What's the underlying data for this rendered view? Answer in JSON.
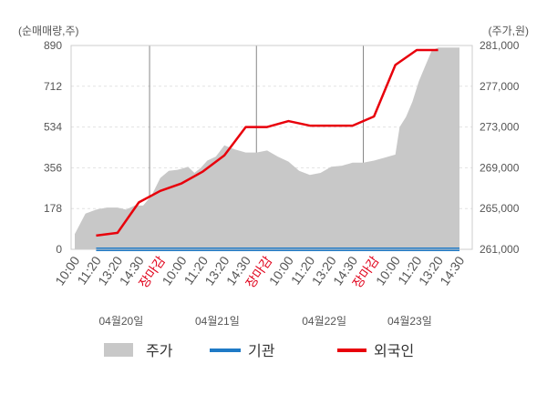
{
  "chart_data": {
    "type": "area",
    "title": "",
    "left_axis": {
      "unit": "(순매매량,주)",
      "ticks": [
        "890",
        "712",
        "534",
        "356",
        "178",
        "0"
      ],
      "tick_values": [
        890,
        712,
        534,
        356,
        178,
        0
      ],
      "range": [
        0,
        890
      ]
    },
    "right_axis": {
      "unit": "(주가,원)",
      "ticks": [
        "281,000",
        "277,000",
        "273,000",
        "269,000",
        "265,000",
        "261,000"
      ],
      "tick_values": [
        281000,
        277000,
        273000,
        269000,
        265000,
        261000
      ],
      "range": [
        261000,
        281000
      ]
    },
    "x_tick_labels": [
      "10:00",
      "11:20",
      "13:20",
      "14:30",
      "장마감",
      "10:00",
      "11:20",
      "13:20",
      "14:30",
      "장마감",
      "10:00",
      "11:20",
      "13:20",
      "14:30",
      "장마감",
      "10:00",
      "11:20",
      "13:20",
      "14:30"
    ],
    "close_label": "장마감",
    "dates": [
      "04월20일",
      "04월21일",
      "04월22일",
      "04월23일"
    ],
    "legend": [
      "주가",
      "기관",
      "외국인"
    ],
    "series": [
      {
        "name": "주가",
        "axis": "right",
        "color": "#c8c8c8",
        "x": [
          0,
          0.5,
          1,
          1.5,
          2,
          2.4,
          2.8,
          3.2,
          3.6,
          4,
          4.4,
          4.8,
          5,
          5.3,
          5.6,
          5.9,
          6.2,
          6.6,
          7,
          7.5,
          8,
          8.5,
          9,
          9.5,
          10,
          10.5,
          11,
          11.5,
          12,
          12.5,
          13,
          13.5,
          14,
          14.5,
          15,
          15.2,
          15.5,
          15.8,
          16.1,
          16.4,
          16.7,
          17,
          17.5,
          18
        ],
        "values": [
          262500,
          264500,
          264900,
          265100,
          265100,
          264900,
          265300,
          265300,
          266300,
          268000,
          268700,
          268800,
          268900,
          269100,
          268500,
          269000,
          269700,
          270100,
          271200,
          270800,
          270500,
          270500,
          270700,
          270100,
          269600,
          268700,
          268300,
          268500,
          269100,
          269200,
          269500,
          269500,
          269700,
          270000,
          270300,
          273000,
          274000,
          275500,
          277500,
          279000,
          280500,
          280800,
          280800,
          280800
        ]
      },
      {
        "name": "기관",
        "axis": "left",
        "color": "#1f7ac6",
        "x": [
          1,
          18
        ],
        "values": [
          0,
          0
        ]
      },
      {
        "name": "외국인",
        "axis": "left",
        "color": "#e8000b",
        "x": [
          1,
          2,
          3,
          4,
          5,
          6,
          7,
          8,
          9,
          10,
          11,
          12,
          13,
          14,
          15,
          16,
          17
        ],
        "values": [
          60,
          72,
          205,
          255,
          288,
          340,
          410,
          534,
          534,
          560,
          540,
          540,
          540,
          580,
          805,
          870,
          870
        ]
      }
    ],
    "grid": true,
    "legend_position": "bottom"
  }
}
